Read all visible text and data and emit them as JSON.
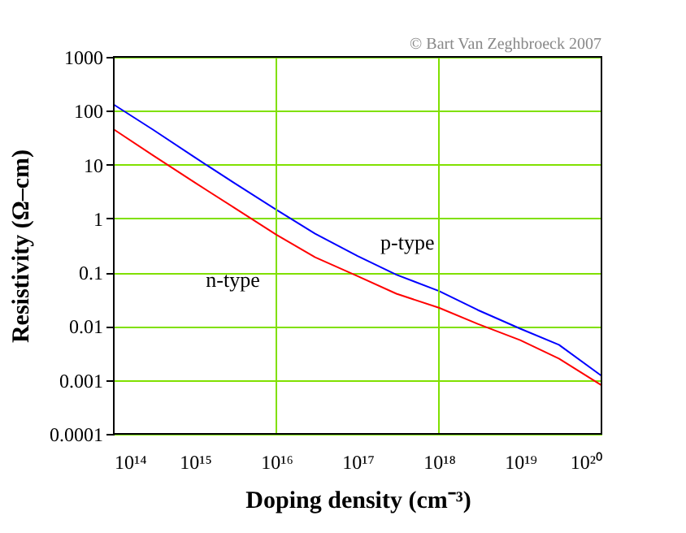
{
  "chart_data": {
    "type": "line",
    "xlabel": "Doping density (cm⁻³)",
    "ylabel": "Resistivity (Ω–cm)",
    "annotations": [
      "© Bart Van Zeghbroeck 2007"
    ],
    "log": "xy",
    "grid": "y",
    "marker": "none",
    "line_style": "solid",
    "x": [
      100000000000000.0,
      300000000000000.0,
      1000000000000000.0,
      3000000000000000.0,
      1e+16,
      3e+16,
      1e+17,
      3e+17,
      1e+18,
      3e+18,
      1e+19,
      3e+19,
      1e+20
    ],
    "series": [
      {
        "name": "p-type",
        "color": "#0000ff",
        "values": [
          130,
          45,
          13.5,
          4.6,
          1.45,
          0.52,
          0.2,
          0.09,
          0.045,
          0.02,
          0.009,
          0.0045,
          0.0012
        ]
      },
      {
        "name": "n-type",
        "color": "#ff0000",
        "values": [
          45,
          15,
          4.6,
          1.6,
          0.5,
          0.19,
          0.085,
          0.04,
          0.022,
          0.011,
          0.0055,
          0.0025,
          0.0008
        ]
      }
    ],
    "xlim": [
      100000000000000.0,
      1e+20
    ],
    "xticks": [
      {
        "value": 100000000000000.0,
        "label": "10¹⁴"
      },
      {
        "value": 1000000000000000.0,
        "label": "10¹⁵"
      },
      {
        "value": 1e+16,
        "label": "10¹⁶"
      },
      {
        "value": 1e+17,
        "label": "10¹⁷"
      },
      {
        "value": 1e+18,
        "label": "10¹⁸"
      },
      {
        "value": 1e+19,
        "label": "10¹⁹"
      },
      {
        "value": 1e+20,
        "label": "10²⁰"
      }
    ],
    "ylim": [
      0.0001,
      1000
    ],
    "yticks": [
      0.0001,
      0.001,
      0.01,
      0.1,
      1,
      10,
      100,
      1000
    ],
    "ref_lines": [
      {
        "axis": "x",
        "value": 1e+16,
        "color": "#80e000"
      },
      {
        "axis": "x",
        "value": 1e+18,
        "color": "#80e000"
      }
    ]
  }
}
